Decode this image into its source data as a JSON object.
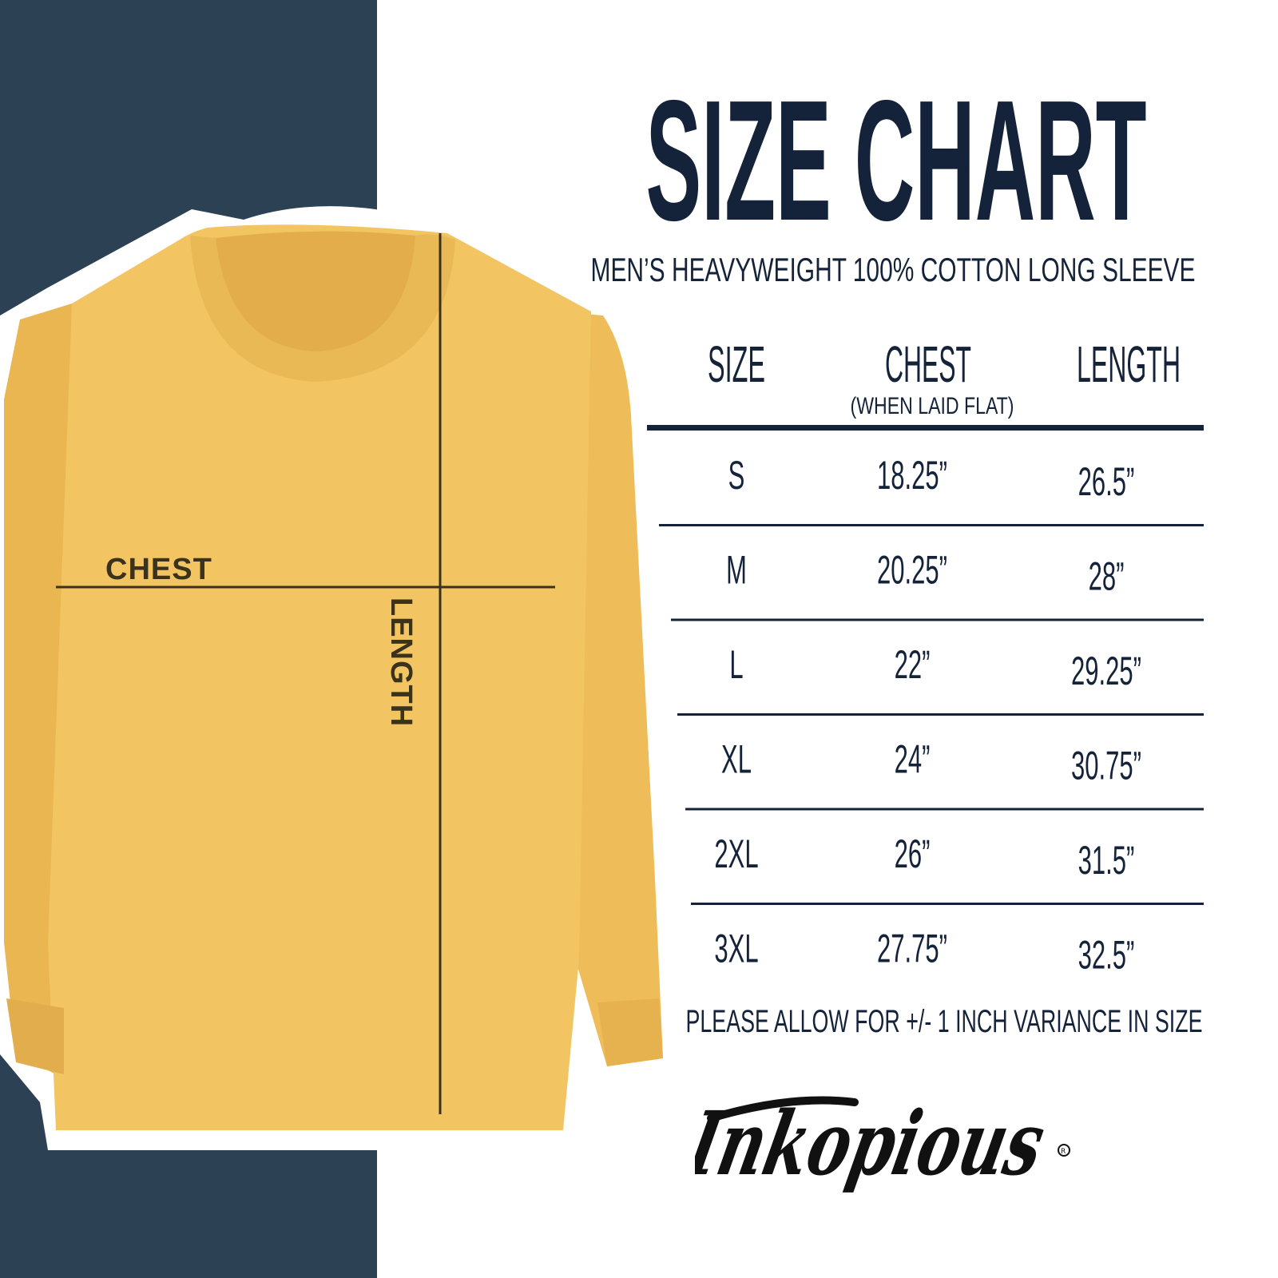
{
  "title": "SIZE CHART",
  "subtitle": "MEN’S HEAVYWEIGHT 100% COTTON LONG SLEEVE",
  "colors": {
    "navy_panel": "#2d4154",
    "text": "#14233a",
    "shirt": "#f2c462",
    "shirt_label": "#3b321c"
  },
  "diagram": {
    "chest_label": "CHEST",
    "length_label": "LENGTH"
  },
  "table": {
    "headers": {
      "size": "SIZE",
      "chest": "CHEST",
      "chest_note": "(WHEN LAID FLAT)",
      "length": "LENGTH"
    },
    "rows": [
      {
        "size": "S",
        "chest": "18.25”",
        "length": "26.5”"
      },
      {
        "size": "M",
        "chest": "20.25”",
        "length": "28”"
      },
      {
        "size": "L",
        "chest": "22”",
        "length": "29.25”"
      },
      {
        "size": "XL",
        "chest": "24”",
        "length": "30.75”"
      },
      {
        "size": "2XL",
        "chest": "26”",
        "length": "31.5”"
      },
      {
        "size": "3XL",
        "chest": "27.75”",
        "length": "32.5”"
      }
    ]
  },
  "note": "PLEASE ALLOW FOR +/- 1 INCH VARIANCE IN SIZE",
  "brand": {
    "logo_text": "Inkopious",
    "registered_mark": "®"
  }
}
